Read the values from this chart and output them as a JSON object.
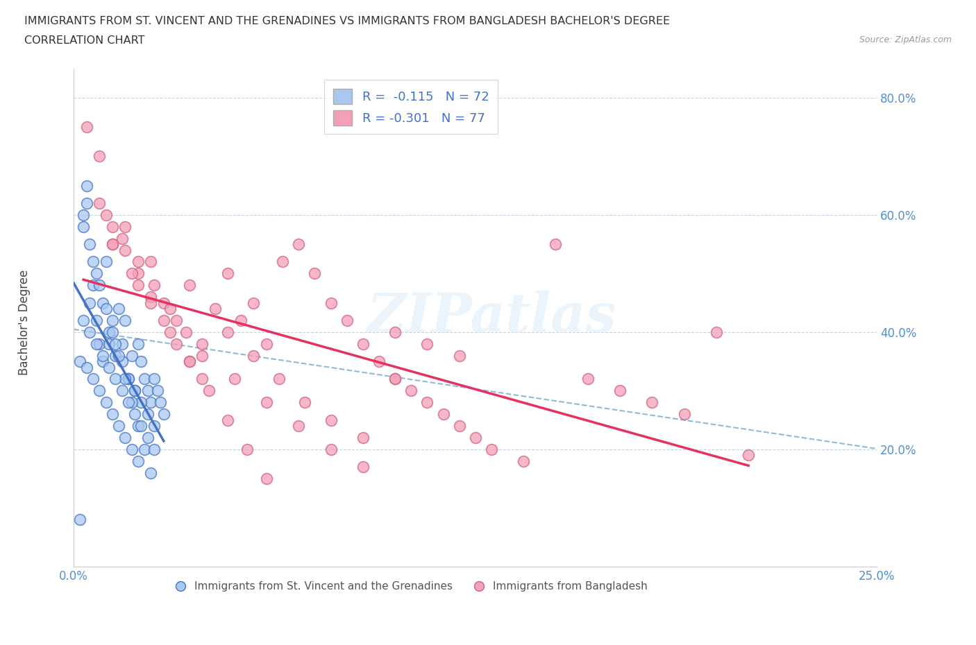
{
  "title_line1": "IMMIGRANTS FROM ST. VINCENT AND THE GRENADINES VS IMMIGRANTS FROM BANGLADESH BACHELOR'S DEGREE",
  "title_line2": "CORRELATION CHART",
  "source_text": "Source: ZipAtlas.com",
  "ylabel": "Bachelor's Degree",
  "xlim": [
    0.0,
    0.25
  ],
  "ylim": [
    0.0,
    0.85
  ],
  "r_blue": -0.115,
  "n_blue": 72,
  "r_pink": -0.301,
  "n_pink": 77,
  "color_blue": "#a8c8f0",
  "color_pink": "#f4a0b8",
  "color_blue_line": "#4472c4",
  "color_pink_line": "#e8306080",
  "color_pink_line_solid": "#e83060",
  "color_dashed": "#90b8d8",
  "watermark": "ZIPatlas",
  "legend_label_blue": "Immigrants from St. Vincent and the Grenadines",
  "legend_label_pink": "Immigrants from Bangladesh",
  "blue_scatter_x": [
    0.002,
    0.003,
    0.004,
    0.005,
    0.006,
    0.007,
    0.008,
    0.009,
    0.01,
    0.011,
    0.012,
    0.013,
    0.014,
    0.015,
    0.016,
    0.017,
    0.018,
    0.019,
    0.02,
    0.021,
    0.022,
    0.023,
    0.024,
    0.025,
    0.026,
    0.027,
    0.028,
    0.003,
    0.005,
    0.007,
    0.009,
    0.011,
    0.013,
    0.015,
    0.017,
    0.019,
    0.021,
    0.023,
    0.025,
    0.004,
    0.006,
    0.008,
    0.01,
    0.012,
    0.014,
    0.016,
    0.018,
    0.02,
    0.022,
    0.024,
    0.003,
    0.005,
    0.007,
    0.009,
    0.011,
    0.013,
    0.015,
    0.017,
    0.019,
    0.021,
    0.023,
    0.025,
    0.004,
    0.006,
    0.008,
    0.01,
    0.012,
    0.014,
    0.016,
    0.018,
    0.02,
    0.002
  ],
  "blue_scatter_y": [
    0.35,
    0.58,
    0.62,
    0.45,
    0.48,
    0.42,
    0.38,
    0.35,
    0.52,
    0.38,
    0.42,
    0.36,
    0.44,
    0.38,
    0.42,
    0.32,
    0.36,
    0.3,
    0.38,
    0.35,
    0.32,
    0.3,
    0.28,
    0.32,
    0.3,
    0.28,
    0.26,
    0.6,
    0.55,
    0.5,
    0.45,
    0.4,
    0.38,
    0.35,
    0.32,
    0.3,
    0.28,
    0.26,
    0.24,
    0.65,
    0.52,
    0.48,
    0.44,
    0.4,
    0.36,
    0.32,
    0.28,
    0.24,
    0.2,
    0.16,
    0.42,
    0.4,
    0.38,
    0.36,
    0.34,
    0.32,
    0.3,
    0.28,
    0.26,
    0.24,
    0.22,
    0.2,
    0.34,
    0.32,
    0.3,
    0.28,
    0.26,
    0.24,
    0.22,
    0.2,
    0.18,
    0.08
  ],
  "pink_scatter_x": [
    0.004,
    0.008,
    0.012,
    0.016,
    0.02,
    0.024,
    0.028,
    0.032,
    0.036,
    0.04,
    0.044,
    0.048,
    0.052,
    0.056,
    0.06,
    0.065,
    0.07,
    0.075,
    0.08,
    0.085,
    0.09,
    0.095,
    0.1,
    0.105,
    0.11,
    0.115,
    0.12,
    0.125,
    0.13,
    0.14,
    0.15,
    0.16,
    0.17,
    0.18,
    0.19,
    0.2,
    0.21,
    0.008,
    0.012,
    0.016,
    0.02,
    0.024,
    0.028,
    0.032,
    0.036,
    0.04,
    0.048,
    0.056,
    0.064,
    0.072,
    0.08,
    0.09,
    0.1,
    0.01,
    0.015,
    0.02,
    0.025,
    0.03,
    0.035,
    0.04,
    0.05,
    0.06,
    0.07,
    0.08,
    0.09,
    0.1,
    0.11,
    0.12,
    0.012,
    0.018,
    0.024,
    0.03,
    0.036,
    0.042,
    0.048,
    0.054,
    0.06
  ],
  "pink_scatter_y": [
    0.75,
    0.7,
    0.55,
    0.58,
    0.48,
    0.52,
    0.45,
    0.42,
    0.48,
    0.38,
    0.44,
    0.5,
    0.42,
    0.45,
    0.38,
    0.52,
    0.55,
    0.5,
    0.45,
    0.42,
    0.38,
    0.35,
    0.32,
    0.3,
    0.28,
    0.26,
    0.24,
    0.22,
    0.2,
    0.18,
    0.55,
    0.32,
    0.3,
    0.28,
    0.26,
    0.4,
    0.19,
    0.62,
    0.58,
    0.54,
    0.5,
    0.46,
    0.42,
    0.38,
    0.35,
    0.32,
    0.4,
    0.36,
    0.32,
    0.28,
    0.25,
    0.22,
    0.32,
    0.6,
    0.56,
    0.52,
    0.48,
    0.44,
    0.4,
    0.36,
    0.32,
    0.28,
    0.24,
    0.2,
    0.17,
    0.4,
    0.38,
    0.36,
    0.55,
    0.5,
    0.45,
    0.4,
    0.35,
    0.3,
    0.25,
    0.2,
    0.15
  ]
}
